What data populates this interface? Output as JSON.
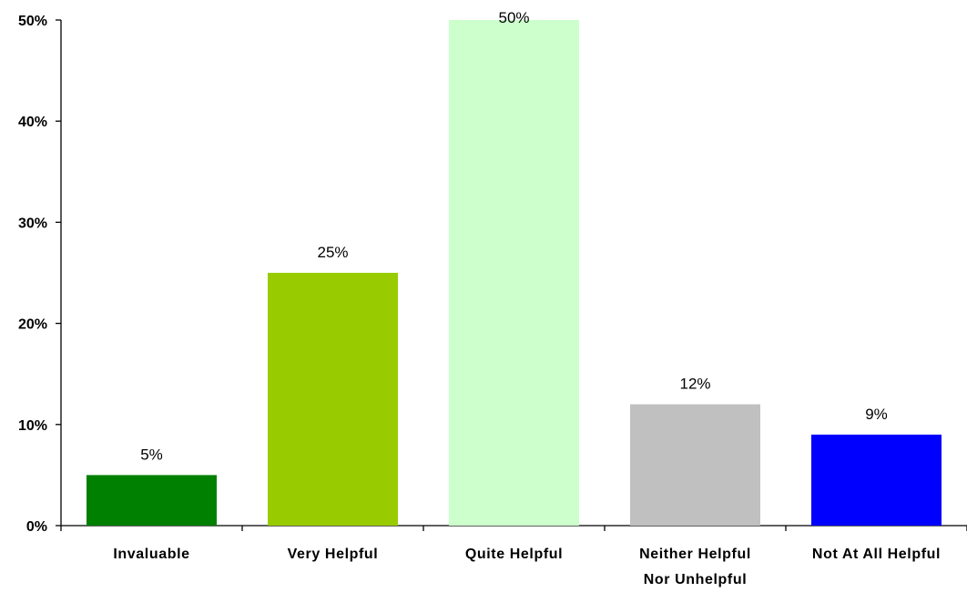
{
  "chart_data": {
    "type": "bar",
    "categories": [
      [
        "Invaluable"
      ],
      [
        "Very Helpful"
      ],
      [
        "Quite Helpful"
      ],
      [
        "Neither Helpful",
        "Nor Unhelpful"
      ],
      [
        "Not At All Helpful"
      ]
    ],
    "values": [
      5,
      25,
      50,
      12,
      9
    ],
    "data_labels": [
      "5%",
      "25%",
      "50%",
      "12%",
      "9%"
    ],
    "colors": [
      "#008000",
      "#99cc00",
      "#ccffcc",
      "#c0c0c0",
      "#0000ff"
    ],
    "ylim": [
      0,
      50
    ],
    "yticks": [
      0,
      10,
      20,
      30,
      40,
      50
    ],
    "ytick_labels": [
      "0%",
      "10%",
      "20%",
      "30%",
      "40%",
      "50%"
    ],
    "grid": false,
    "title": "",
    "xlabel": "",
    "ylabel": ""
  }
}
